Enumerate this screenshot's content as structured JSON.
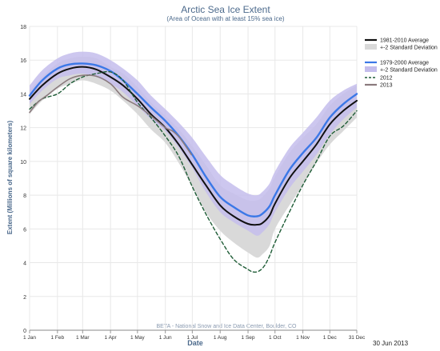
{
  "chart_data": {
    "type": "line",
    "title": "Arctic Sea Ice Extent",
    "subtitle": "(Area of Ocean with at least 15% sea ice)",
    "xlabel": "Date",
    "ylabel": "Extent (Millions of square kilometers)",
    "source": "BETA - National Snow and Ice Data Center, Boulder, CO",
    "date_stamp": "30 Jun 2013",
    "ylim": [
      0,
      18
    ],
    "yticks": [
      0,
      2,
      4,
      6,
      8,
      10,
      12,
      14,
      16,
      18
    ],
    "x_unit": "day of year",
    "xlim": [
      1,
      365
    ],
    "xticks": [
      {
        "label": "1 Jan",
        "x": 1
      },
      {
        "label": "1 Feb",
        "x": 32
      },
      {
        "label": "1 Mar",
        "x": 60
      },
      {
        "label": "1 Apr",
        "x": 91
      },
      {
        "label": "1 May",
        "x": 121
      },
      {
        "label": "1 Jun",
        "x": 152
      },
      {
        "label": "1 Jul",
        "x": 182
      },
      {
        "label": "1 Aug",
        "x": 213
      },
      {
        "label": "1 Sep",
        "x": 244
      },
      {
        "label": "1 Oct",
        "x": 274
      },
      {
        "label": "1 Nov",
        "x": 305
      },
      {
        "label": "1 Dec",
        "x": 335
      },
      {
        "label": "31 Dec",
        "x": 365
      }
    ],
    "grid": true,
    "legend_position": "right",
    "legend": [
      {
        "label": "1981-2010 Average",
        "kind": "line",
        "color": "#111111",
        "dash": "solid"
      },
      {
        "label": "+-2 Standard Deviation",
        "kind": "band",
        "color": "#d9d9d9"
      },
      {
        "label": "1979-2000 Average",
        "kind": "line",
        "color": "#3b78e7",
        "dash": "solid"
      },
      {
        "label": "+-2 Standard Deviation",
        "kind": "band",
        "color": "#c4bdec"
      },
      {
        "label": "2012",
        "kind": "line",
        "color": "#1e5c36",
        "dash": "dashed"
      },
      {
        "label": "2013",
        "kind": "line",
        "color": "#8a7a7d",
        "dash": "solid"
      }
    ],
    "series": [
      {
        "name": "1981-2010 Average",
        "style": "line",
        "color": "#111111",
        "x": [
          1,
          15,
          32,
          46,
          60,
          75,
          91,
          105,
          121,
          136,
          152,
          167,
          182,
          197,
          213,
          228,
          244,
          254,
          260,
          268,
          274,
          290,
          305,
          320,
          335,
          350,
          365
        ],
        "y": [
          13.7,
          14.5,
          15.2,
          15.5,
          15.6,
          15.45,
          15.0,
          14.5,
          13.7,
          12.8,
          12.0,
          11.0,
          9.8,
          8.6,
          7.4,
          6.75,
          6.3,
          6.25,
          6.35,
          6.8,
          7.5,
          9.0,
          10.0,
          11.0,
          12.2,
          13.0,
          13.6
        ]
      },
      {
        "name": "1979-2000 Average",
        "style": "line",
        "color": "#3b78e7",
        "x": [
          1,
          15,
          32,
          46,
          60,
          75,
          91,
          105,
          121,
          136,
          152,
          167,
          182,
          197,
          213,
          228,
          244,
          254,
          260,
          268,
          274,
          290,
          305,
          320,
          335,
          350,
          365
        ],
        "y": [
          13.9,
          14.8,
          15.5,
          15.75,
          15.8,
          15.7,
          15.35,
          14.8,
          14.0,
          13.2,
          12.4,
          11.5,
          10.4,
          9.1,
          7.9,
          7.3,
          6.8,
          6.75,
          6.9,
          7.35,
          8.0,
          9.5,
          10.5,
          11.4,
          12.6,
          13.4,
          14.0
        ]
      },
      {
        "name": "2012",
        "style": "dashed",
        "color": "#1e5c36",
        "x": [
          1,
          15,
          32,
          46,
          60,
          75,
          91,
          105,
          121,
          136,
          152,
          167,
          182,
          197,
          213,
          228,
          244,
          250,
          256,
          262,
          268,
          274,
          290,
          305,
          320,
          335,
          350,
          365
        ],
        "y": [
          13.1,
          13.7,
          14.0,
          14.6,
          15.0,
          15.2,
          15.3,
          14.8,
          13.5,
          12.6,
          11.5,
          10.3,
          8.5,
          6.9,
          5.4,
          4.2,
          3.6,
          3.45,
          3.5,
          3.8,
          4.4,
          5.2,
          7.0,
          8.6,
          10.0,
          11.5,
          12.1,
          13.0
        ]
      },
      {
        "name": "2013",
        "style": "line",
        "color": "#8a7a7d",
        "x": [
          1,
          10,
          20,
          32,
          46,
          60,
          75,
          91,
          105,
          121,
          136,
          152,
          160,
          168,
          176,
          181
        ],
        "y": [
          12.9,
          13.5,
          13.9,
          14.4,
          14.9,
          15.1,
          15.05,
          14.6,
          13.8,
          13.3,
          12.7,
          12.0,
          11.8,
          11.4,
          10.8,
          10.4
        ]
      }
    ],
    "bands": [
      {
        "name": "+-2 Standard Deviation (1981-2010)",
        "color": "#d9d9d9",
        "x": [
          1,
          15,
          32,
          46,
          60,
          75,
          91,
          105,
          121,
          136,
          152,
          167,
          182,
          197,
          213,
          228,
          244,
          254,
          260,
          268,
          274,
          290,
          305,
          320,
          335,
          350,
          365
        ],
        "upper": [
          14.2,
          15.0,
          15.8,
          16.1,
          16.2,
          16.1,
          15.6,
          15.2,
          14.4,
          13.5,
          12.7,
          11.9,
          10.9,
          9.8,
          8.6,
          8.1,
          7.7,
          7.7,
          7.9,
          8.4,
          9.1,
          10.5,
          11.4,
          12.2,
          13.3,
          14.0,
          14.5
        ],
        "lower": [
          12.8,
          13.6,
          14.3,
          14.6,
          14.8,
          14.6,
          14.2,
          13.6,
          12.8,
          11.9,
          11.1,
          9.9,
          8.5,
          7.0,
          5.9,
          5.2,
          4.6,
          4.3,
          4.5,
          5.0,
          6.0,
          7.4,
          8.6,
          9.9,
          11.0,
          11.8,
          12.6
        ]
      },
      {
        "name": "+-2 Standard Deviation (1979-2000)",
        "color": "#c4bdec",
        "x": [
          1,
          15,
          32,
          46,
          60,
          75,
          91,
          105,
          121,
          136,
          152,
          167,
          182,
          197,
          213,
          228,
          244,
          254,
          260,
          268,
          274,
          290,
          305,
          320,
          335,
          350,
          365
        ],
        "upper": [
          14.5,
          15.4,
          16.1,
          16.4,
          16.5,
          16.4,
          16.0,
          15.5,
          14.8,
          13.9,
          13.1,
          12.3,
          11.4,
          10.3,
          9.2,
          8.6,
          8.1,
          8.0,
          8.2,
          8.7,
          9.4,
          10.8,
          11.7,
          12.6,
          13.6,
          14.2,
          14.6
        ],
        "lower": [
          13.4,
          14.2,
          14.9,
          15.1,
          15.2,
          15.0,
          14.6,
          14.1,
          13.3,
          12.5,
          11.8,
          10.8,
          9.6,
          8.2,
          7.0,
          6.4,
          5.9,
          5.6,
          5.8,
          6.3,
          7.0,
          8.4,
          9.4,
          10.4,
          11.6,
          12.5,
          13.2
        ]
      }
    ]
  }
}
